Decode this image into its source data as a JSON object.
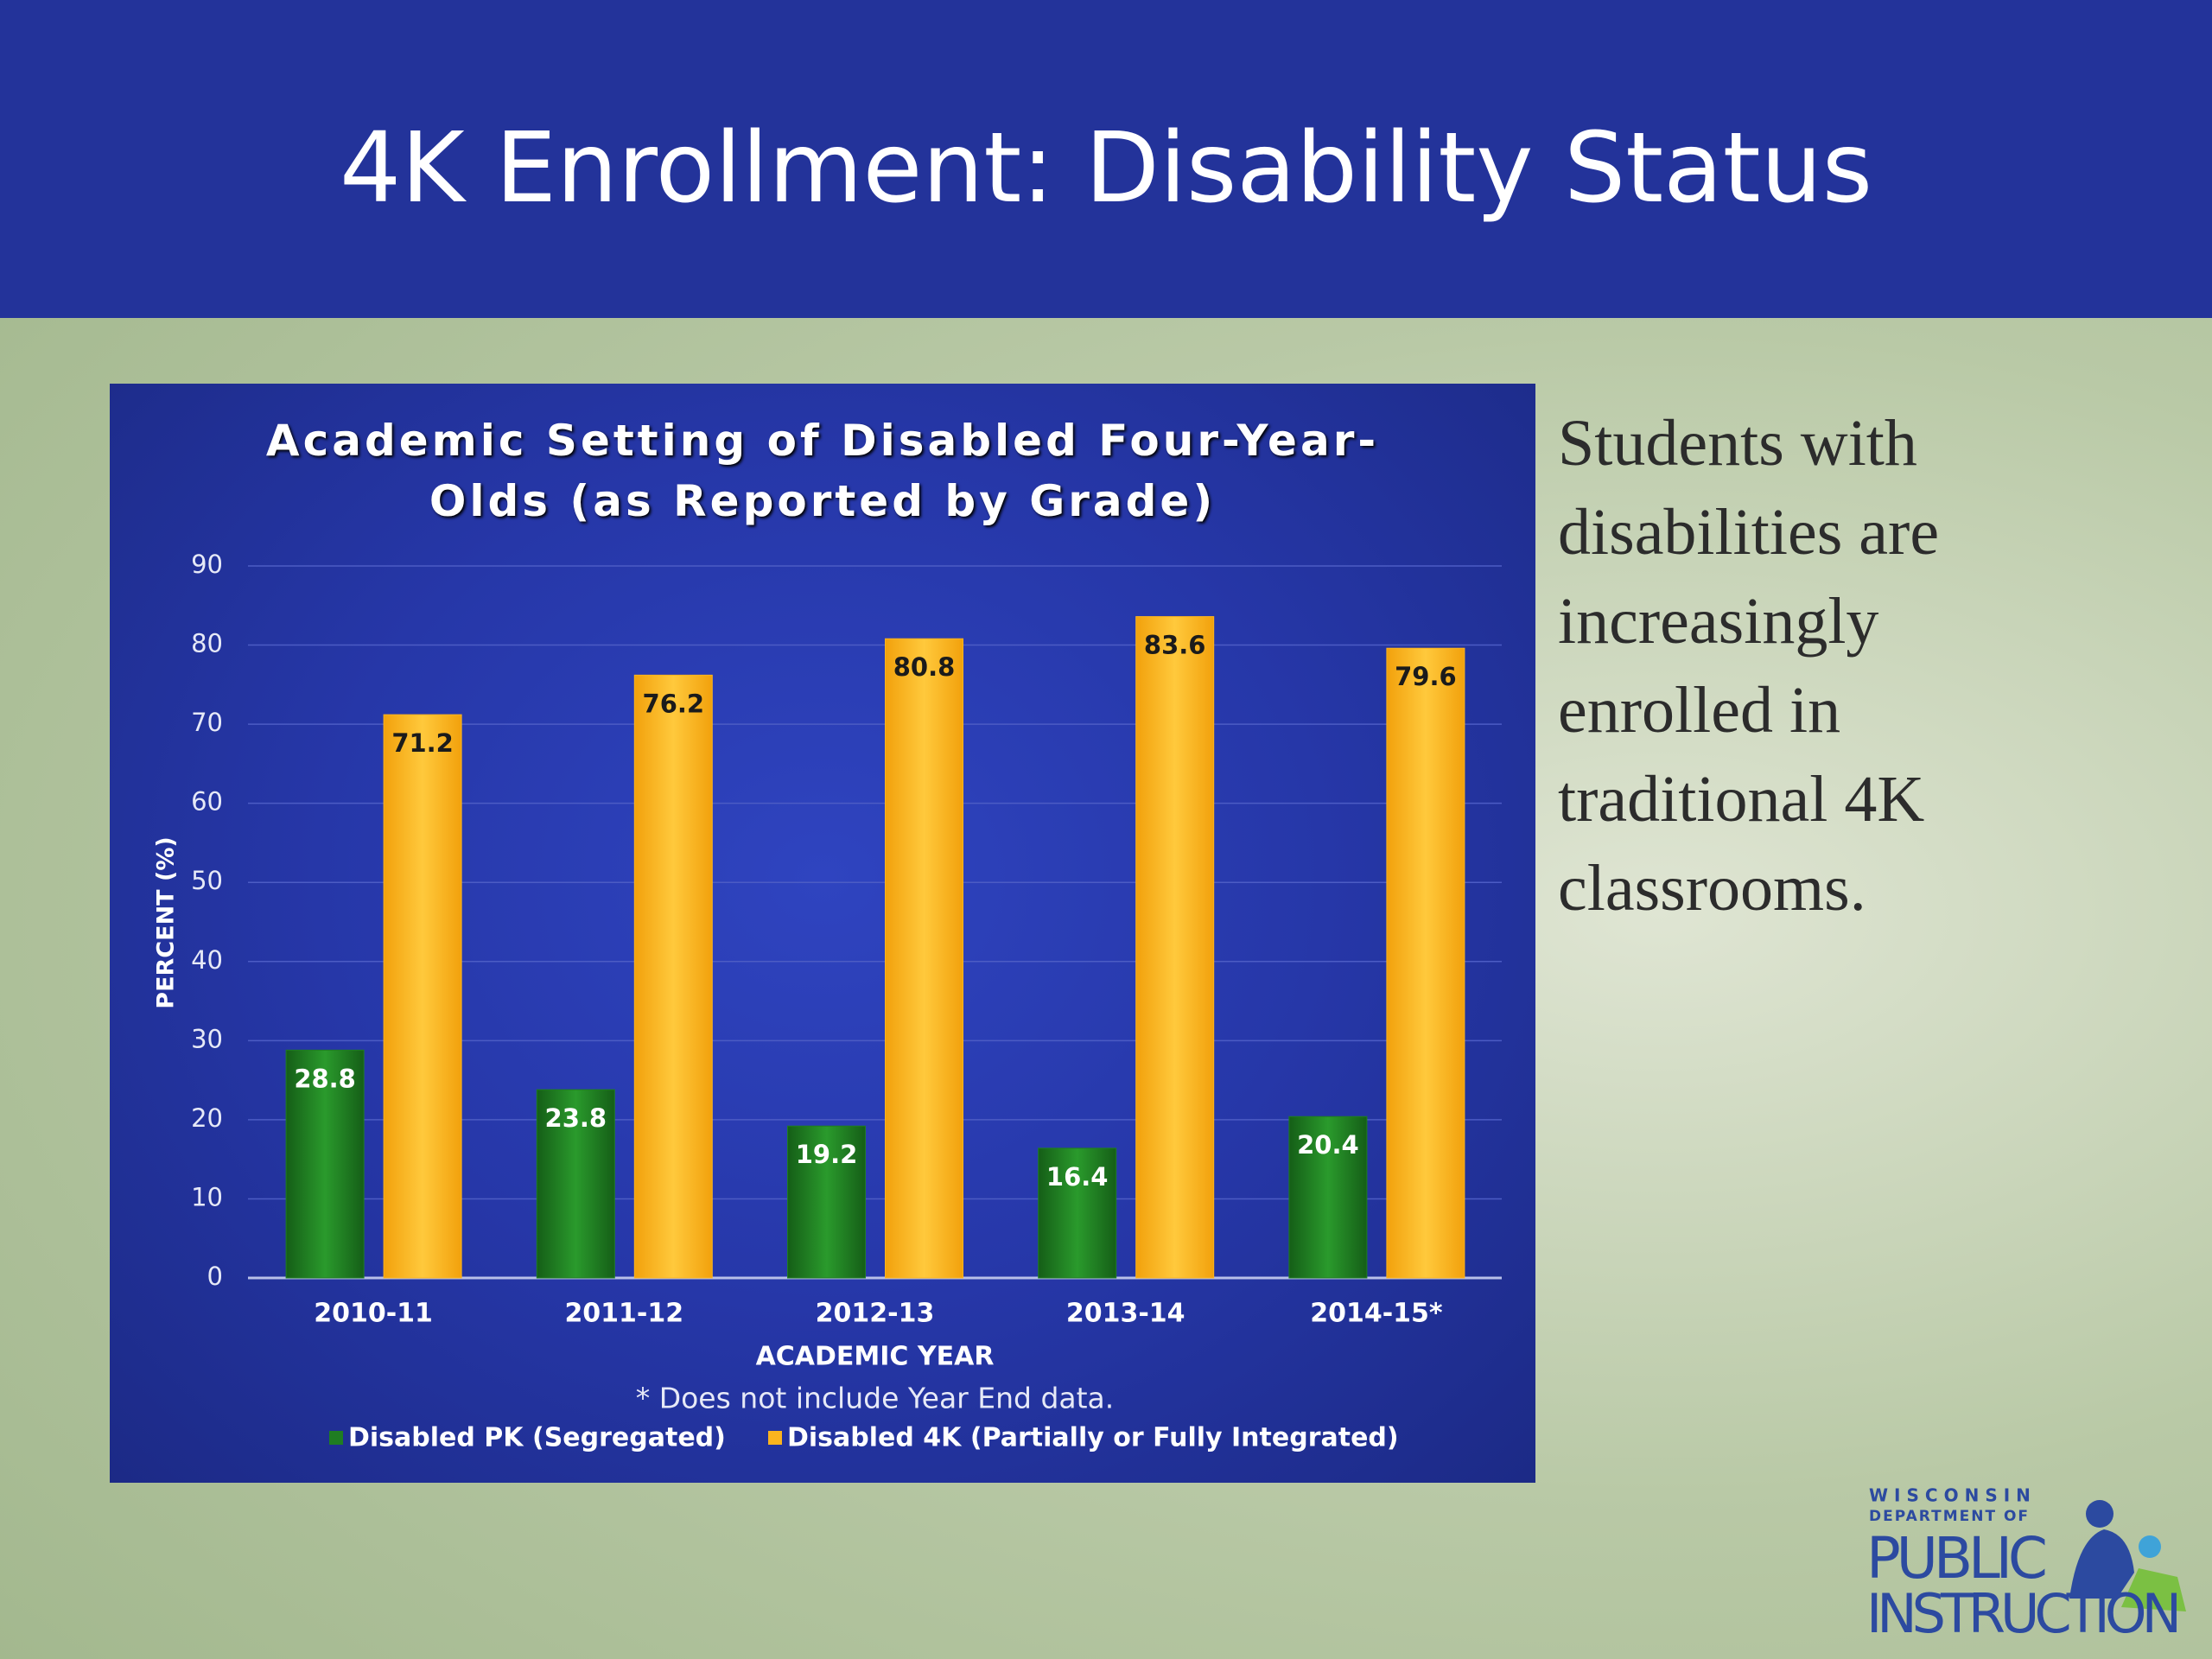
{
  "slide": {
    "title": "4K Enrollment: Disability Status",
    "body": "Students with disabilities are increasingly enrolled in traditional 4K classrooms."
  },
  "logo": {
    "line1": "WISCONSIN",
    "line2": "DEPARTMENT OF",
    "line3": "PUBLIC",
    "line4": "INSTRUCTION"
  },
  "chart_data": {
    "type": "bar",
    "title": "Academic Setting of Disabled Four-Year-Olds (as Reported by Grade)",
    "x_label": "ACADEMIC YEAR",
    "y_label": "PERCENT (%)",
    "note": "* Does not include Year End data.",
    "categories": [
      "2010-11",
      "2011-12",
      "2012-13",
      "2013-14",
      "2014-15*"
    ],
    "series": [
      {
        "name": "Disabled PK (Segregated)",
        "color": "#1f7d22",
        "values": [
          28.8,
          23.8,
          19.2,
          16.4,
          20.4
        ]
      },
      {
        "name": "Disabled 4K (Partially or Fully Integrated)",
        "color": "#fbb41e",
        "values": [
          71.2,
          76.2,
          80.8,
          83.6,
          79.6
        ]
      }
    ],
    "ylim": [
      0,
      90
    ],
    "yticks": [
      0,
      10,
      20,
      30,
      40,
      50,
      60,
      70,
      80,
      90
    ],
    "grid": true,
    "legend": "bottom"
  }
}
